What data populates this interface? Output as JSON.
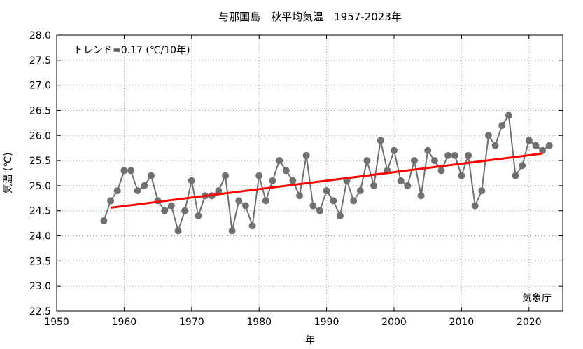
{
  "chart_data": {
    "type": "line",
    "title": "与那国島　秋平均気温　1957-2023年",
    "xlabel": "年",
    "ylabel": "気温 (℃)",
    "xlim": [
      1950,
      2025
    ],
    "ylim": [
      22.5,
      28.0
    ],
    "xticks": [
      1950,
      1960,
      1970,
      1980,
      1990,
      2000,
      2010,
      2020
    ],
    "yticks": [
      22.5,
      23.0,
      23.5,
      24.0,
      24.5,
      25.0,
      25.5,
      26.0,
      26.5,
      27.0,
      27.5,
      28.0
    ],
    "xtick_labels": [
      "1950",
      "1960",
      "1970",
      "1980",
      "1990",
      "2000",
      "2010",
      "2020"
    ],
    "ytick_labels": [
      "22.5",
      "23.0",
      "23.5",
      "24.0",
      "24.5",
      "25.0",
      "25.5",
      "26.0",
      "26.5",
      "27.0",
      "27.5",
      "28.0"
    ],
    "grid": true,
    "annotation": "トレンド=0.17 (℃/10年)",
    "credit": "気象庁",
    "colors": {
      "series": "#707070",
      "trend": "#ff0000"
    },
    "x": [
      1957,
      1958,
      1959,
      1960,
      1961,
      1962,
      1963,
      1964,
      1965,
      1966,
      1967,
      1968,
      1969,
      1970,
      1971,
      1972,
      1973,
      1974,
      1975,
      1976,
      1977,
      1978,
      1979,
      1980,
      1981,
      1982,
      1983,
      1984,
      1985,
      1986,
      1987,
      1988,
      1989,
      1990,
      1991,
      1992,
      1993,
      1994,
      1995,
      1996,
      1997,
      1998,
      1999,
      2000,
      2001,
      2002,
      2003,
      2004,
      2005,
      2006,
      2007,
      2008,
      2009,
      2010,
      2011,
      2012,
      2013,
      2014,
      2015,
      2016,
      2017,
      2018,
      2019,
      2020,
      2021,
      2022,
      2023
    ],
    "values": [
      24.3,
      24.7,
      24.9,
      25.3,
      25.3,
      24.9,
      25.0,
      25.2,
      24.7,
      24.5,
      24.6,
      24.1,
      24.5,
      25.1,
      24.4,
      24.8,
      24.8,
      24.9,
      25.2,
      24.1,
      24.7,
      24.6,
      24.2,
      25.2,
      24.7,
      25.1,
      25.5,
      25.3,
      25.1,
      24.8,
      25.6,
      24.6,
      24.5,
      24.9,
      24.7,
      24.4,
      25.1,
      24.7,
      24.9,
      25.5,
      25.0,
      25.9,
      25.3,
      25.7,
      25.1,
      25.0,
      25.5,
      24.8,
      25.7,
      25.5,
      25.3,
      25.6,
      25.6,
      25.2,
      25.6,
      24.6,
      24.9,
      26.0,
      25.8,
      26.2,
      26.4,
      25.2,
      25.4,
      25.9,
      25.8,
      25.7,
      25.8
    ],
    "trend": {
      "x": [
        1958,
        2022
      ],
      "y": [
        24.56,
        25.64
      ]
    }
  }
}
